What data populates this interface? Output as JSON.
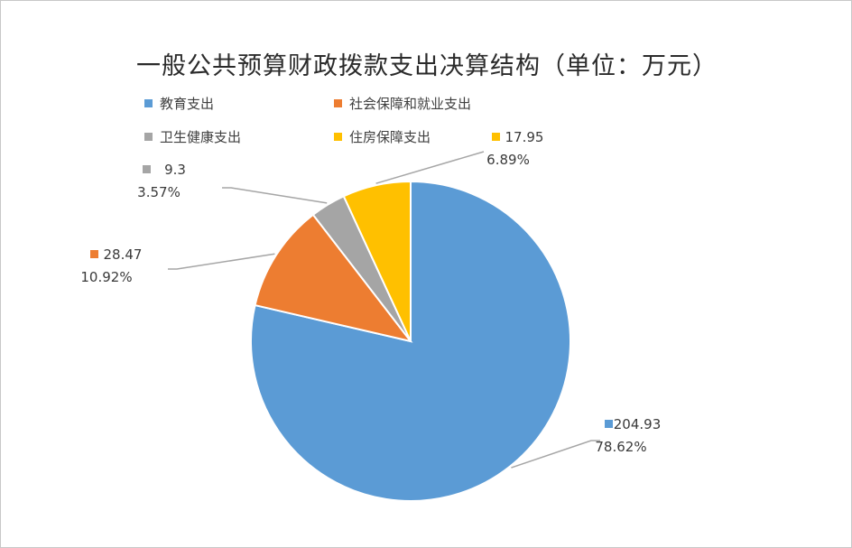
{
  "chart_data": {
    "type": "pie",
    "title": "一般公共预算财政拨款支出决算结构（单位：万元）",
    "categories": [
      "教育支出",
      "社会保障和就业支出",
      "卫生健康支出",
      "住房保障支出"
    ],
    "values": [
      204.93,
      28.47,
      9.3,
      17.95
    ],
    "value_labels": [
      "204.93",
      "28.47",
      "9.3",
      "17.95"
    ],
    "percent_labels": [
      "78.62%",
      "10.92%",
      "3.57%",
      "6.89%"
    ],
    "colors": [
      "#5b9bd5",
      "#ed7d31",
      "#a5a5a5",
      "#ffc000"
    ],
    "legend_position": "top-left"
  }
}
